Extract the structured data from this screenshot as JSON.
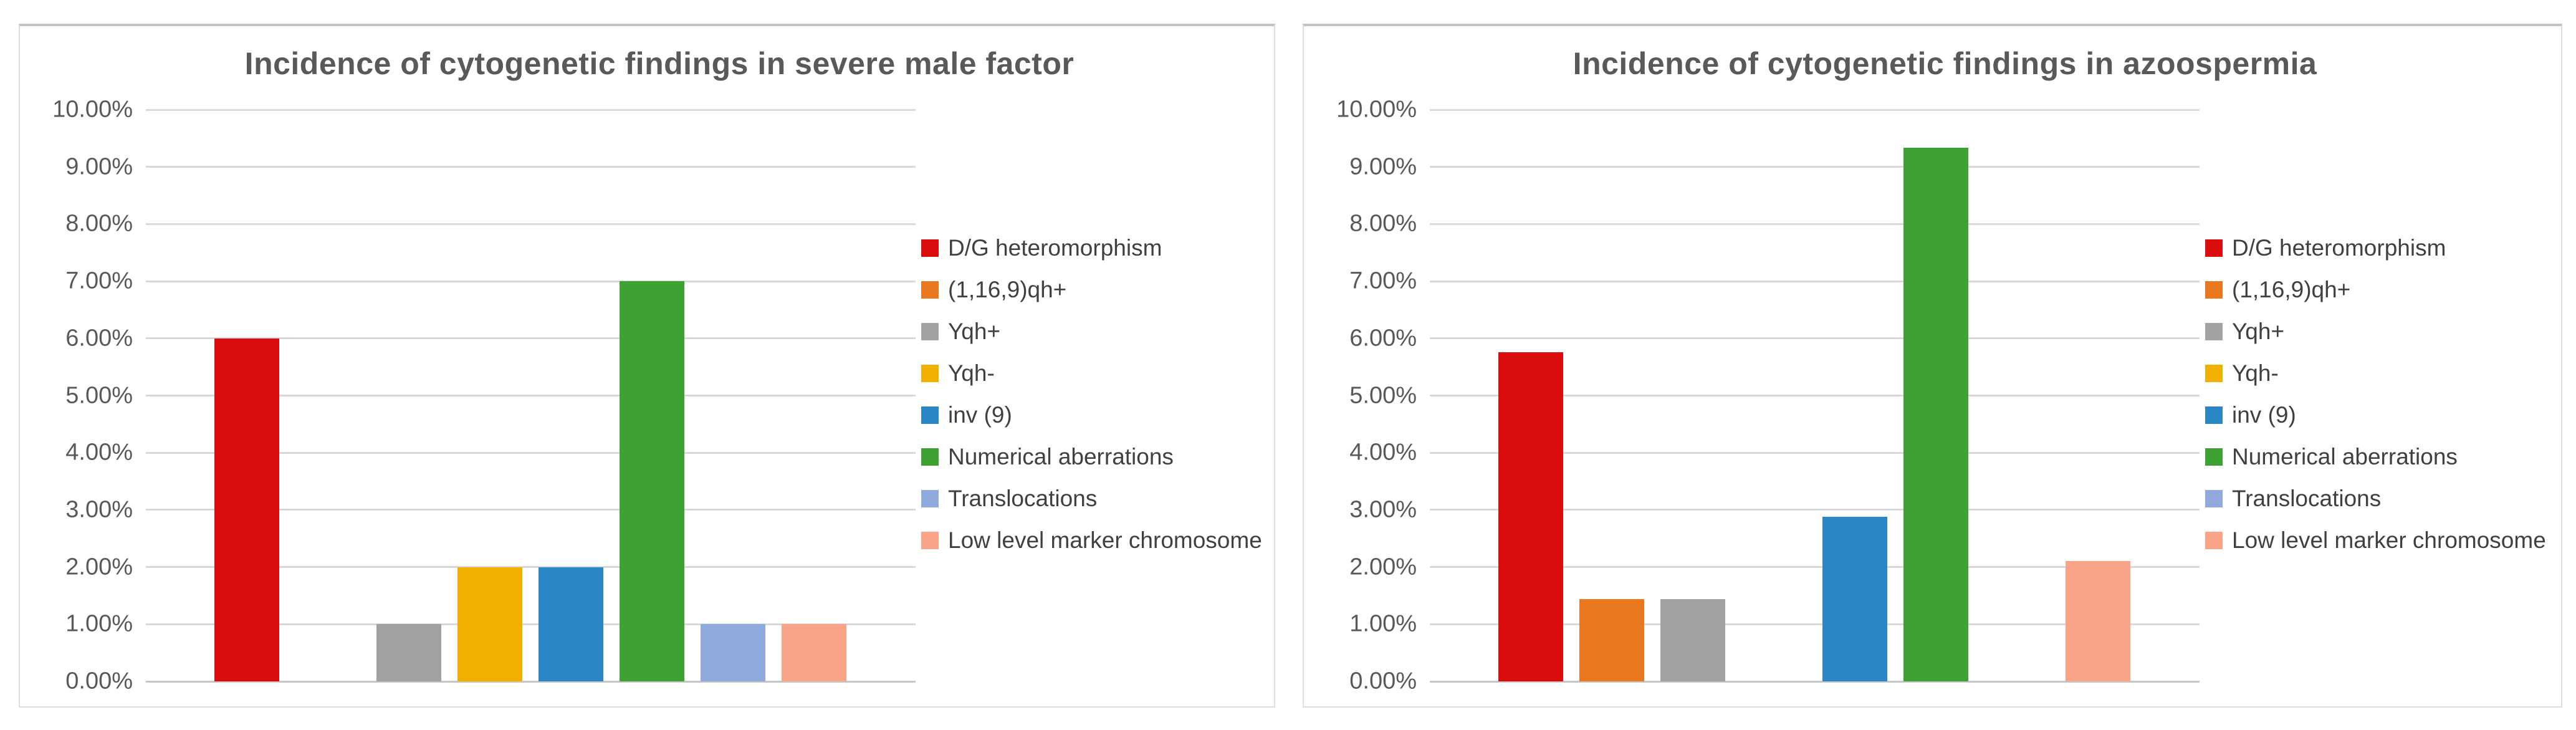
{
  "chart_data": [
    {
      "type": "bar",
      "title": "Incidence of cytogenetic findings in severe male factor",
      "categories": [
        "D/G heteromorphism",
        "(1,16,9)qh+",
        "Yqh+",
        "Yqh-",
        "inv (9)",
        "Numerical aberrations",
        "Translocations",
        "Low level marker chromosome"
      ],
      "values": [
        6.0,
        0,
        1.0,
        2.0,
        2.0,
        7.0,
        1.0,
        1.0
      ],
      "value_unit": "percent",
      "ylim": [
        0,
        10
      ],
      "ytick_labels": [
        "0.00%",
        "1.00%",
        "2.00%",
        "3.00%",
        "4.00%",
        "5.00%",
        "6.00%",
        "7.00%",
        "8.00%",
        "9.00%",
        "10.00%"
      ],
      "grid": true,
      "legend_position": "right",
      "xlabel": "",
      "ylabel": "",
      "colors": [
        "#d90d0d",
        "#e9781f",
        "#a2a2a2",
        "#f0b000",
        "#2b87c4",
        "#3ea233",
        "#8faadc",
        "#f9a488"
      ]
    },
    {
      "type": "bar",
      "title": "Incidence of cytogenetic findings in azoospermia",
      "categories": [
        "D/G heteromorphism",
        "(1,16,9)qh+",
        "Yqh+",
        "Yqh-",
        "inv (9)",
        "Numerical aberrations",
        "Translocations",
        "Low level marker chromosome"
      ],
      "values": [
        5.76,
        1.44,
        1.44,
        0,
        2.88,
        9.33,
        0,
        2.1
      ],
      "value_unit": "percent",
      "ylim": [
        0,
        10
      ],
      "ytick_labels": [
        "0.00%",
        "1.00%",
        "2.00%",
        "3.00%",
        "4.00%",
        "5.00%",
        "6.00%",
        "7.00%",
        "8.00%",
        "9.00%",
        "10.00%"
      ],
      "grid": true,
      "legend_position": "right",
      "xlabel": "",
      "ylabel": "",
      "colors": [
        "#d90d0d",
        "#e9781f",
        "#a2a2a2",
        "#f0b000",
        "#2b87c4",
        "#3ea233",
        "#8faadc",
        "#f9a488"
      ]
    }
  ],
  "styles": {
    "title_color": "#595959",
    "tick_label_color": "#595959",
    "legend_text_color": "#404040",
    "gridline_color": "#d9d9d9",
    "axis_line_color": "#c6c6c6",
    "panel_border_color": "#dedede",
    "panel_top_border_color": "#c2c2c2",
    "background_color": "#ffffff"
  }
}
